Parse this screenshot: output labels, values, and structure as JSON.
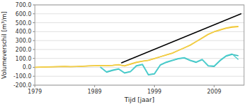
{
  "chart_data": {
    "type": "line",
    "xlabel": "Tijd [jaar]",
    "ylabel": "Volumeverschil [m³/m]",
    "xlim": [
      1979,
      2014
    ],
    "ylim": [
      -200.0,
      700.0
    ],
    "xticks": [
      1979,
      1989,
      1999,
      2009
    ],
    "yticks": [
      {
        "value": -200.0,
        "label": "-200.0"
      },
      {
        "value": -100.0,
        "label": "-100.0"
      },
      {
        "value": 0.0,
        "label": "0.0"
      },
      {
        "value": 100.0,
        "label": "100.0"
      },
      {
        "value": 200.0,
        "label": "200.0"
      },
      {
        "value": 300.0,
        "label": "300.0"
      },
      {
        "value": 400.0,
        "label": "400.0"
      },
      {
        "value": 500.0,
        "label": "500.0"
      },
      {
        "value": 600.0,
        "label": "600.0"
      },
      {
        "value": 700.0,
        "label": "700.0"
      }
    ],
    "grid": true,
    "series": [
      {
        "color": "#f5b800",
        "x": [
          1979,
          1980,
          1981,
          1982,
          1983,
          1984,
          1985,
          1986,
          1987,
          1988,
          1989,
          1990,
          1991,
          1992,
          1993,
          1994,
          1995,
          1996,
          1997,
          1998,
          1999,
          2000,
          2001,
          2002,
          2003,
          2004,
          2005,
          2006,
          2007,
          2008,
          2009,
          2010,
          2011,
          2012,
          2013
        ],
        "values": [
          0,
          2,
          4,
          6,
          8,
          10,
          7,
          9,
          12,
          15,
          18,
          20,
          18,
          22,
          28,
          15,
          35,
          55,
          68,
          78,
          98,
          118,
          138,
          158,
          188,
          218,
          248,
          288,
          328,
          368,
          398,
          418,
          438,
          450,
          455
        ]
      },
      {
        "color": "#f0d050",
        "x": [
          1979,
          1980,
          1981,
          1982,
          1983,
          1984,
          1985,
          1986,
          1987,
          1988,
          1989,
          1990,
          1991,
          1992,
          1993,
          1994,
          1995,
          1996,
          1997,
          1998,
          1999,
          2000,
          2001,
          2002,
          2003,
          2004,
          2005,
          2006,
          2007,
          2008,
          2009,
          2010,
          2011,
          2012,
          2013
        ],
        "values": [
          0,
          3,
          5,
          7,
          9,
          11,
          8,
          10,
          14,
          17,
          20,
          22,
          20,
          24,
          30,
          18,
          38,
          58,
          70,
          80,
          100,
          120,
          140,
          160,
          190,
          220,
          250,
          290,
          332,
          372,
          400,
          422,
          442,
          455,
          460
        ]
      },
      {
        "color": "#30b8b8",
        "x": [
          1990,
          1991,
          1992,
          1993,
          1994,
          1995,
          1996,
          1997,
          1998,
          1999,
          2000,
          2001,
          2002,
          2003,
          2004,
          2005,
          2006,
          2007,
          2008,
          2009,
          2010,
          2011,
          2012,
          2013
        ],
        "values": [
          0,
          -55,
          -35,
          -20,
          -65,
          -50,
          15,
          30,
          -85,
          -75,
          25,
          55,
          75,
          95,
          105,
          75,
          55,
          85,
          15,
          10,
          75,
          125,
          145,
          130
        ]
      },
      {
        "color": "#50d0d0",
        "x": [
          1990,
          1991,
          1992,
          1993,
          1994,
          1995,
          1996,
          1997,
          1998,
          1999,
          2000,
          2001,
          2002,
          2003,
          2004,
          2005,
          2006,
          2007,
          2008,
          2009,
          2010,
          2011,
          2012,
          2013
        ],
        "values": [
          0,
          -50,
          -30,
          -15,
          -60,
          -45,
          20,
          35,
          -80,
          -70,
          30,
          60,
          80,
          100,
          110,
          80,
          60,
          90,
          20,
          15,
          80,
          130,
          150,
          90
        ]
      },
      {
        "color": "#000000",
        "x": [
          1993.5,
          2013.5
        ],
        "values": [
          50,
          600
        ]
      }
    ]
  }
}
